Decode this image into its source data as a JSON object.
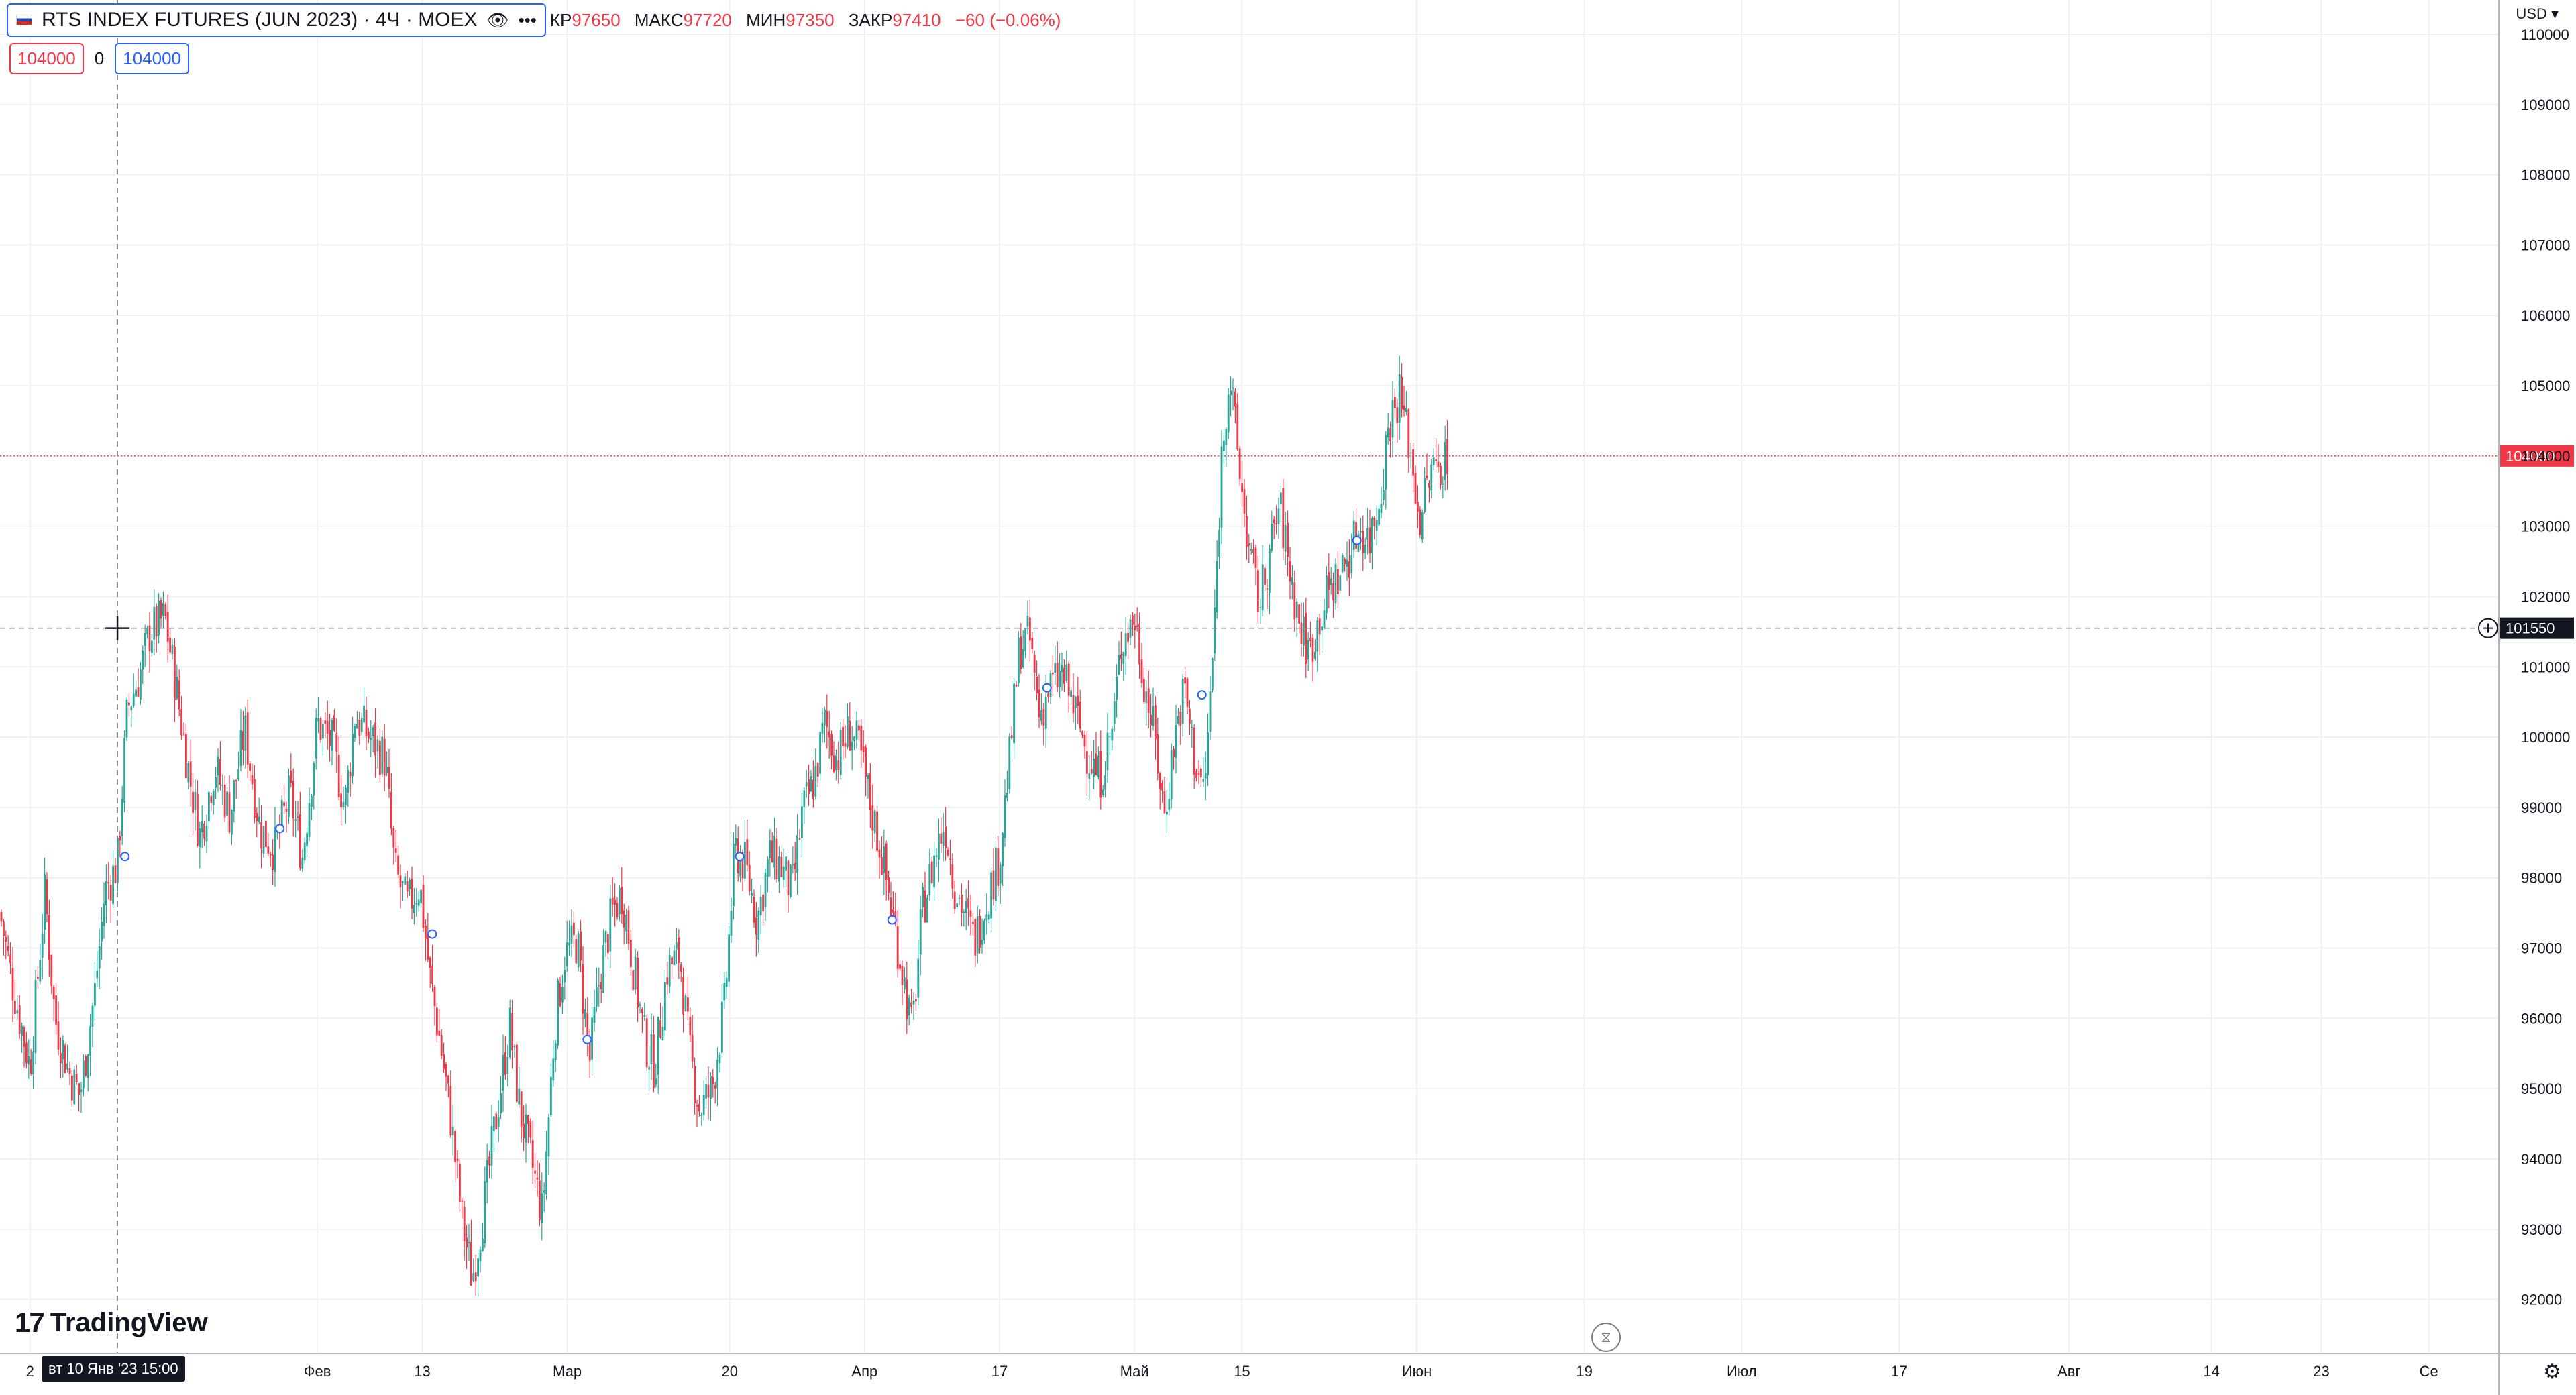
{
  "legend": {
    "title": "RTS INDEX FUTURES (JUN 2023) · 4Ч · MOEX",
    "eye_icon": "eye-icon",
    "more_icon": "more-icon",
    "ohlc": [
      {
        "k": "КР",
        "v": "97650"
      },
      {
        "k": "МАКС",
        "v": "97720"
      },
      {
        "k": "МИН",
        "v": "97350"
      },
      {
        "k": "ЗАКР",
        "v": "97410"
      },
      {
        "k": "",
        "v": "−60 (−0.06%)"
      }
    ]
  },
  "orders": {
    "sell": "104000",
    "zero": "0",
    "buy": "104000"
  },
  "currency": "USD ▾",
  "logo": {
    "mark": "17",
    "text": "TradingView"
  },
  "crosshair_label": "вт 10 Янв '23   15:00",
  "colors": {
    "up": "#26a69a",
    "down": "#f23645",
    "grid": "#eef0f3",
    "text": "#131722"
  },
  "chart_data": {
    "type": "candlestick",
    "symbol": "RTS INDEX FUTURES (JUN 2023)",
    "interval": "4Ч",
    "ylim": [
      91500,
      110200
    ],
    "y_ticks": [
      92000,
      93000,
      94000,
      95000,
      96000,
      97000,
      98000,
      99000,
      100000,
      101000,
      102000,
      103000,
      104000,
      105000,
      106000,
      107000,
      108000,
      109000,
      110000
    ],
    "x_ticks": [
      {
        "label": "2",
        "pos": 0.012
      },
      {
        "label": "Фев",
        "pos": 0.127
      },
      {
        "label": "13",
        "pos": 0.169
      },
      {
        "label": "Мар",
        "pos": 0.227
      },
      {
        "label": "20",
        "pos": 0.292
      },
      {
        "label": "Апр",
        "pos": 0.346
      },
      {
        "label": "17",
        "pos": 0.4
      },
      {
        "label": "Май",
        "pos": 0.454
      },
      {
        "label": "15",
        "pos": 0.497
      },
      {
        "label": "Июн",
        "pos": 0.567
      },
      {
        "label": "19",
        "pos": 0.634
      },
      {
        "label": "Июл",
        "pos": 0.697
      },
      {
        "label": "17",
        "pos": 0.76
      },
      {
        "label": "Авг",
        "pos": 0.828
      },
      {
        "label": "14",
        "pos": 0.885
      },
      {
        "label": "23",
        "pos": 0.929
      },
      {
        "label": "Се",
        "pos": 0.972
      }
    ],
    "price_line": {
      "value": 104000,
      "label": "104000",
      "color": "#f23645"
    },
    "crosshair": {
      "value": 101550,
      "label": "101550",
      "x_pos": 0.047
    },
    "path": [
      [
        0.0,
        97500
      ],
      [
        0.005,
        96500
      ],
      [
        0.012,
        95300
      ],
      [
        0.018,
        97800
      ],
      [
        0.022,
        96000
      ],
      [
        0.028,
        95200
      ],
      [
        0.032,
        94900
      ],
      [
        0.038,
        96400
      ],
      [
        0.042,
        97800
      ],
      [
        0.047,
        98200
      ],
      [
        0.051,
        100400
      ],
      [
        0.056,
        100900
      ],
      [
        0.06,
        101500
      ],
      [
        0.066,
        101700
      ],
      [
        0.071,
        100600
      ],
      [
        0.076,
        99400
      ],
      [
        0.08,
        98600
      ],
      [
        0.086,
        99600
      ],
      [
        0.092,
        98900
      ],
      [
        0.098,
        100100
      ],
      [
        0.104,
        98700
      ],
      [
        0.11,
        98400
      ],
      [
        0.116,
        99200
      ],
      [
        0.121,
        98300
      ],
      [
        0.127,
        100200
      ],
      [
        0.133,
        99900
      ],
      [
        0.138,
        99000
      ],
      [
        0.142,
        100300
      ],
      [
        0.148,
        100000
      ],
      [
        0.154,
        99700
      ],
      [
        0.158,
        98100
      ],
      [
        0.163,
        97600
      ],
      [
        0.168,
        97900
      ],
      [
        0.172,
        96600
      ],
      [
        0.176,
        95700
      ],
      [
        0.18,
        94700
      ],
      [
        0.185,
        93100
      ],
      [
        0.189,
        92300
      ],
      [
        0.194,
        93400
      ],
      [
        0.199,
        94700
      ],
      [
        0.204,
        95900
      ],
      [
        0.208,
        94700
      ],
      [
        0.213,
        93900
      ],
      [
        0.217,
        93200
      ],
      [
        0.222,
        95900
      ],
      [
        0.226,
        96900
      ],
      [
        0.231,
        97100
      ],
      [
        0.236,
        95400
      ],
      [
        0.24,
        96600
      ],
      [
        0.245,
        97500
      ],
      [
        0.249,
        97800
      ],
      [
        0.254,
        96600
      ],
      [
        0.258,
        95700
      ],
      [
        0.262,
        95300
      ],
      [
        0.267,
        96700
      ],
      [
        0.272,
        96900
      ],
      [
        0.276,
        95500
      ],
      [
        0.28,
        94700
      ],
      [
        0.285,
        95000
      ],
      [
        0.29,
        96200
      ],
      [
        0.294,
        98400
      ],
      [
        0.298,
        98200
      ],
      [
        0.303,
        97400
      ],
      [
        0.308,
        98300
      ],
      [
        0.312,
        98200
      ],
      [
        0.317,
        97800
      ],
      [
        0.321,
        98900
      ],
      [
        0.326,
        99400
      ],
      [
        0.33,
        100200
      ],
      [
        0.335,
        99700
      ],
      [
        0.34,
        100100
      ],
      [
        0.344,
        99800
      ],
      [
        0.348,
        99100
      ],
      [
        0.353,
        98300
      ],
      [
        0.357,
        97500
      ],
      [
        0.361,
        96700
      ],
      [
        0.365,
        95800
      ],
      [
        0.369,
        97500
      ],
      [
        0.374,
        98300
      ],
      [
        0.378,
        98800
      ],
      [
        0.382,
        97900
      ],
      [
        0.386,
        97500
      ],
      [
        0.39,
        97100
      ],
      [
        0.395,
        97700
      ],
      [
        0.4,
        98300
      ],
      [
        0.404,
        99700
      ],
      [
        0.408,
        101300
      ],
      [
        0.412,
        101400
      ],
      [
        0.416,
        100300
      ],
      [
        0.42,
        100700
      ],
      [
        0.425,
        100900
      ],
      [
        0.43,
        100400
      ],
      [
        0.435,
        99800
      ],
      [
        0.44,
        99400
      ],
      [
        0.445,
        100100
      ],
      [
        0.449,
        101400
      ],
      [
        0.454,
        101700
      ],
      [
        0.458,
        100800
      ],
      [
        0.462,
        100000
      ],
      [
        0.466,
        98900
      ],
      [
        0.47,
        100000
      ],
      [
        0.474,
        100700
      ],
      [
        0.478,
        99700
      ],
      [
        0.482,
        99200
      ],
      [
        0.486,
        101600
      ],
      [
        0.489,
        104100
      ],
      [
        0.492,
        105200
      ],
      [
        0.496,
        103800
      ],
      [
        0.5,
        102600
      ],
      [
        0.504,
        101900
      ],
      [
        0.508,
        102600
      ],
      [
        0.512,
        103300
      ],
      [
        0.516,
        102400
      ],
      [
        0.52,
        101600
      ],
      [
        0.524,
        101200
      ],
      [
        0.528,
        101700
      ],
      [
        0.532,
        102100
      ],
      [
        0.536,
        102300
      ],
      [
        0.54,
        102600
      ],
      [
        0.544,
        103000
      ],
      [
        0.548,
        102800
      ],
      [
        0.552,
        103400
      ],
      [
        0.556,
        104500
      ],
      [
        0.56,
        104900
      ],
      [
        0.564,
        104200
      ],
      [
        0.568,
        103100
      ],
      [
        0.572,
        103700
      ],
      [
        0.576,
        103900
      ],
      [
        0.58,
        104000
      ]
    ],
    "markers": [
      {
        "x": 0.05,
        "y": 98300
      },
      {
        "x": 0.112,
        "y": 98700
      },
      {
        "x": 0.173,
        "y": 97200
      },
      {
        "x": 0.235,
        "y": 95700
      },
      {
        "x": 0.296,
        "y": 98300
      },
      {
        "x": 0.357,
        "y": 97400
      },
      {
        "x": 0.419,
        "y": 100700
      },
      {
        "x": 0.481,
        "y": 100600
      },
      {
        "x": 0.543,
        "y": 102800
      }
    ]
  }
}
